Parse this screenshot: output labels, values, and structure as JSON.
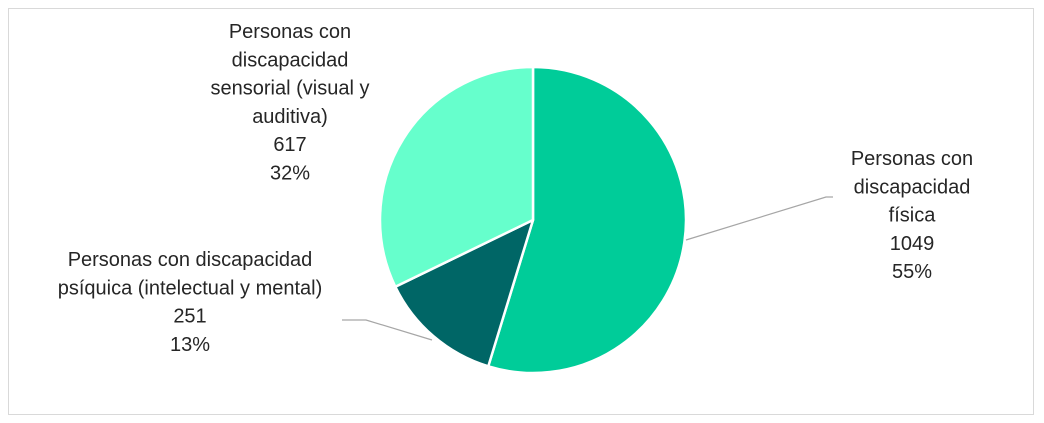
{
  "chart_data": {
    "type": "pie",
    "title": "",
    "slices": [
      {
        "category_lines": [
          "Personas con",
          "discapacidad",
          "física"
        ],
        "value": 1049,
        "percent": "55%",
        "color": "#00CC99"
      },
      {
        "category_lines": [
          "Personas con discapacidad",
          "psíquica (intelectual y mental)"
        ],
        "value": 251,
        "percent": "13%",
        "color": "#006666"
      },
      {
        "category_lines": [
          "Personas con",
          "discapacidad",
          "sensorial (visual y",
          "auditiva)"
        ],
        "value": 617,
        "percent": "32%",
        "color": "#66FFCC"
      }
    ],
    "grid": false,
    "legend": "none"
  }
}
